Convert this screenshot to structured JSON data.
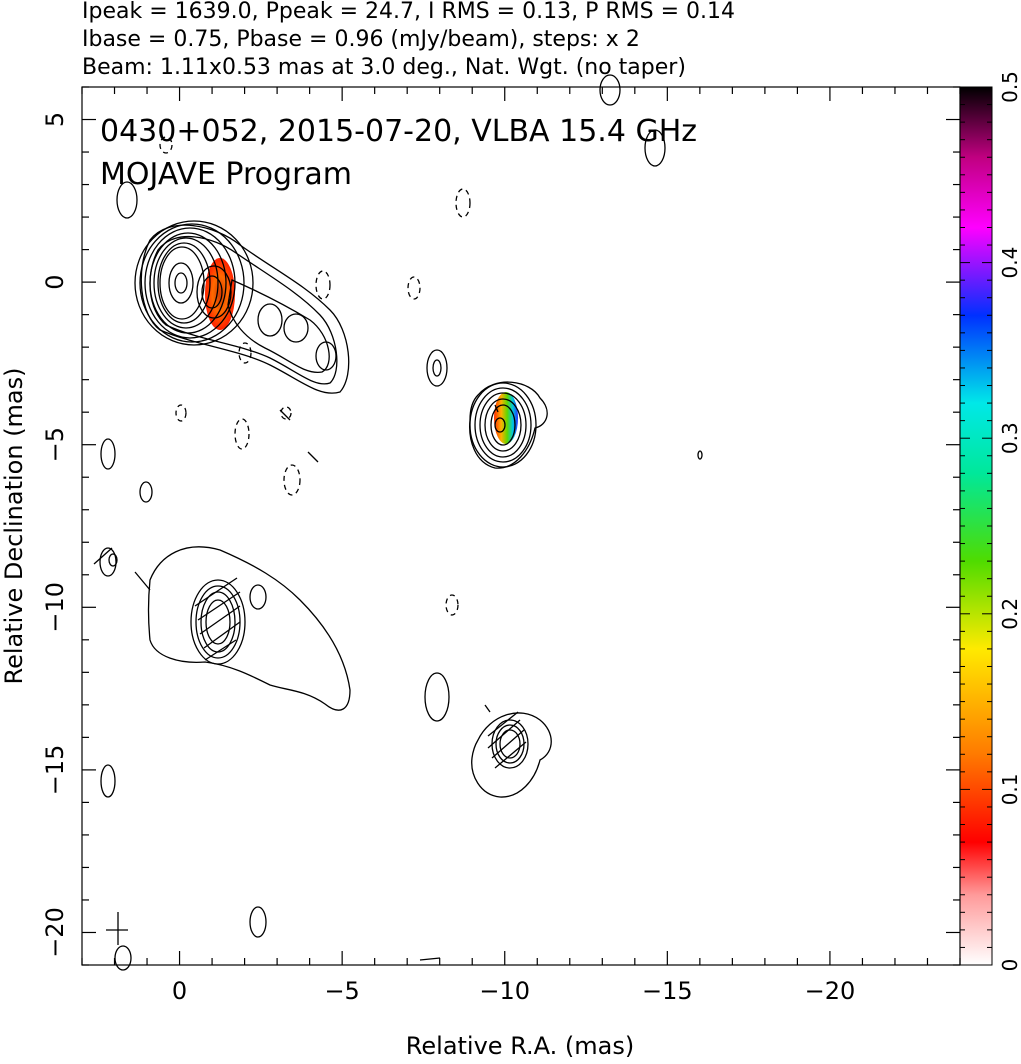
{
  "header": {
    "line1": "Ipeak = 1639.0, Ppeak = 24.7, I RMS = 0.13, P RMS = 0.14",
    "line2": "Ibase = 0.75, Pbase = 0.96 (mJy/beam), steps: x 2",
    "line3": "Beam: 1.11x0.53 mas at 3.0 deg., Nat. Wgt. (no taper)"
  },
  "annotation": {
    "line1": "0430+052, 2015-07-20, VLBA 15.4 GHz",
    "line2": "MOJAVE Program"
  },
  "chart_data": {
    "type": "contour",
    "xlabel": "Relative R.A. (mas)",
    "ylabel": "Relative Declination (mas)",
    "xlim": [
      3,
      -24
    ],
    "ylim": [
      -21,
      6
    ],
    "xticks": [
      0,
      -5,
      -10,
      -15,
      -20
    ],
    "yticks": [
      5,
      0,
      -5,
      -10,
      -15,
      -20
    ],
    "colorbar": {
      "min": 0,
      "max": 0.5,
      "ticks": [
        0,
        0.1,
        0.2,
        0.3,
        0.4,
        0.5
      ]
    },
    "grid": false,
    "contour_levels_mjy": [
      0.75,
      1.5,
      3,
      6,
      12,
      24,
      48,
      96,
      192,
      384,
      768,
      1536
    ],
    "sources": [
      {
        "x": 0,
        "y": 0,
        "peak_mjy": 1639.0
      },
      {
        "x": -10,
        "y": -4.5
      },
      {
        "x": -1.2,
        "y": -10.5
      },
      {
        "x": -10.2,
        "y": -14.5
      }
    ]
  }
}
